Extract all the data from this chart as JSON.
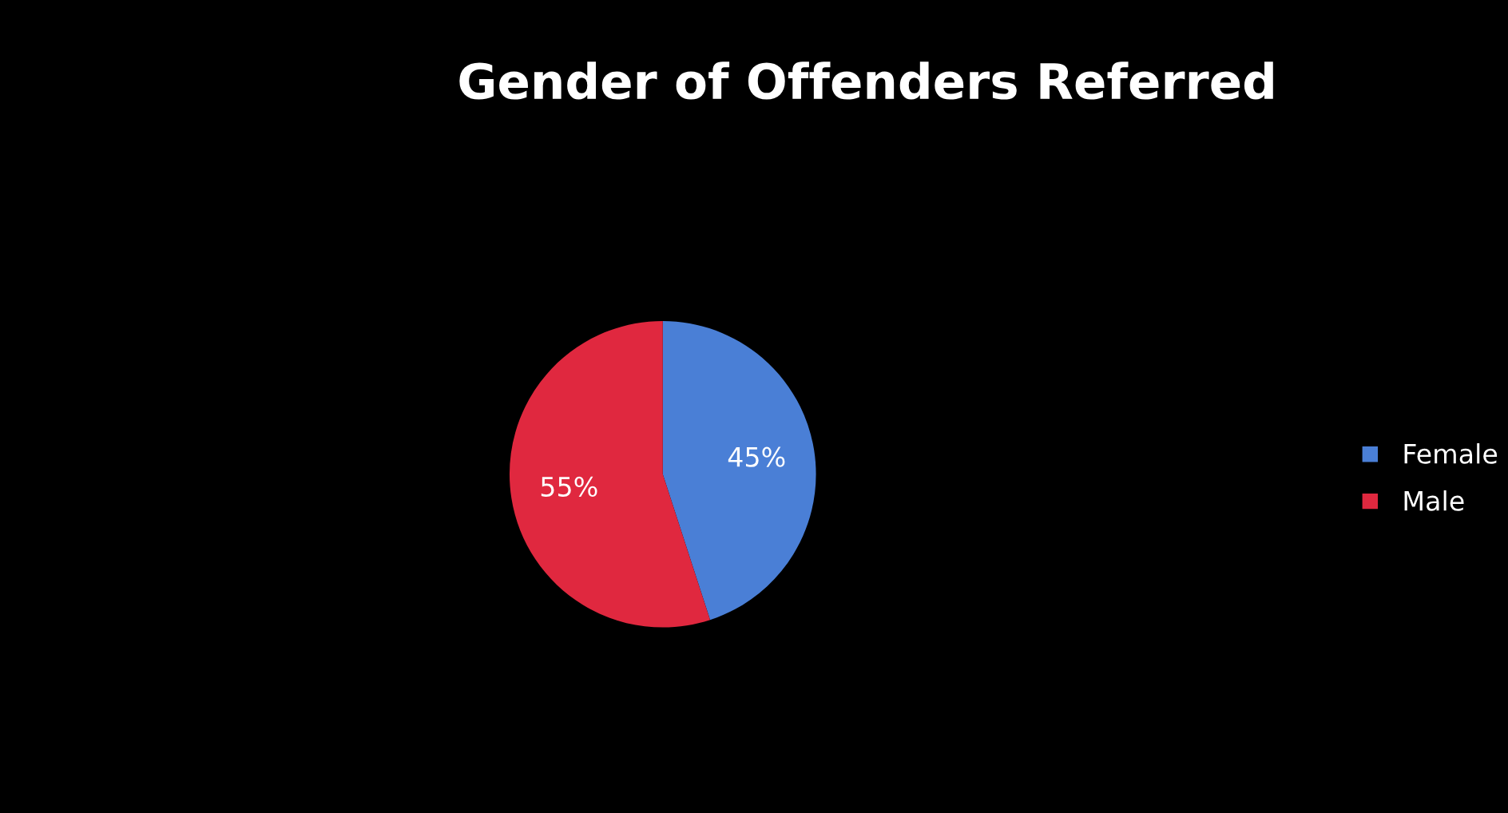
{
  "chart_data": {
    "type": "pie",
    "title": "Gender of Offenders Referred",
    "categories": [
      "Female",
      "Male"
    ],
    "values": [
      45,
      55
    ],
    "colors": [
      "#4a7fd6",
      "#e0283f"
    ],
    "value_labels": [
      "45%",
      "55%"
    ],
    "legend": "right"
  }
}
